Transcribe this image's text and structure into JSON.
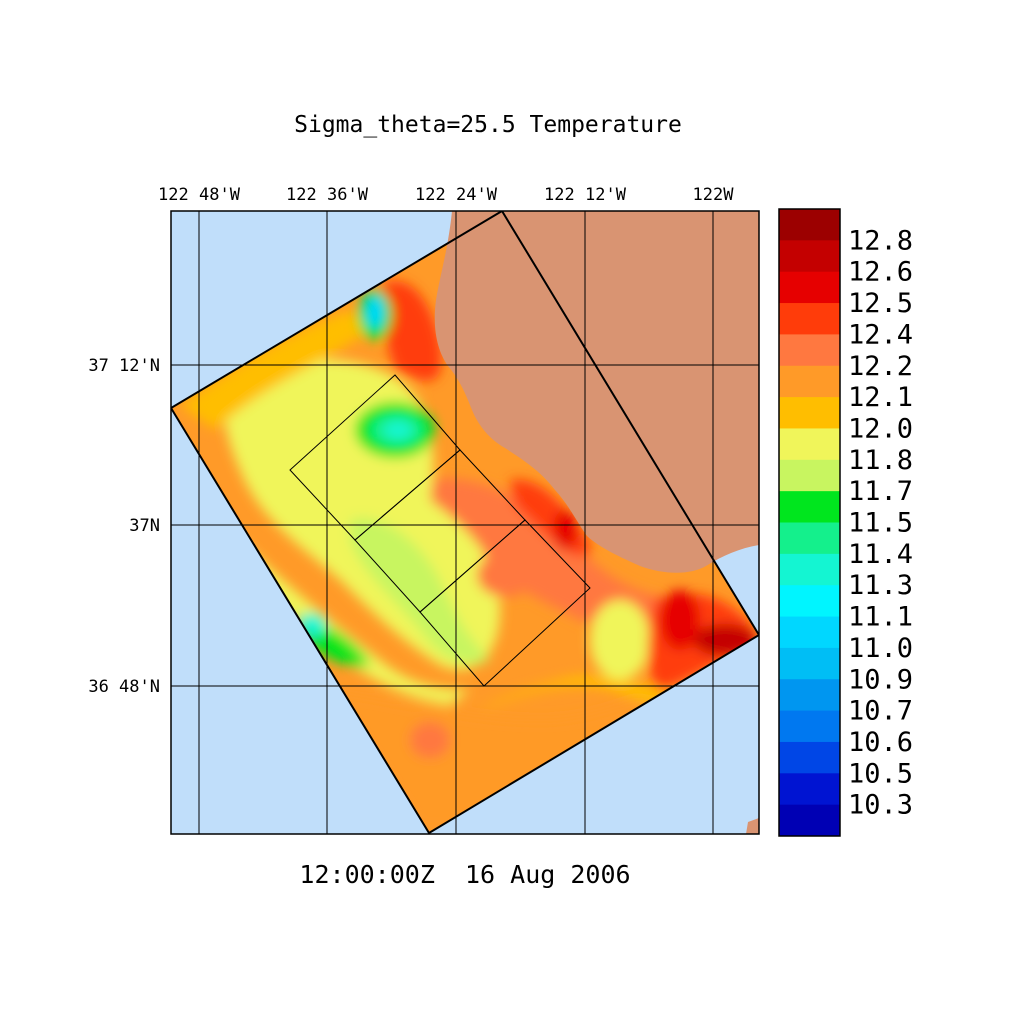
{
  "title": "Sigma_theta=25.5 Temperature",
  "timestamp": "12:00:00Z  16 Aug 2006",
  "longitude_labels": [
    "122 48'W",
    "122 36'W",
    "122 24'W",
    "122 12'W",
    "122W"
  ],
  "latitude_labels": [
    "37 12'N",
    "37N",
    "36 48'N"
  ],
  "colorbar": {
    "labels": [
      "12.8",
      "12.6",
      "12.5",
      "12.4",
      "12.2",
      "12.1",
      "12.0",
      "11.8",
      "11.7",
      "11.5",
      "11.4",
      "11.3",
      "11.1",
      "11.0",
      "10.9",
      "10.7",
      "10.6",
      "10.5",
      "10.3"
    ],
    "colors": [
      "#9c0000",
      "#c40000",
      "#e60000",
      "#ff3c0a",
      "#ff7840",
      "#ff9a28",
      "#ffbe00",
      "#f0f55a",
      "#c8f560",
      "#00e61e",
      "#14f08c",
      "#14f5d2",
      "#00f5ff",
      "#00d7ff",
      "#00bef5",
      "#0096f0",
      "#0078f0",
      "#0046e6",
      "#0014d2",
      "#0000b4"
    ]
  },
  "colors": {
    "ocean": "#c0defa",
    "land": "#d99472",
    "ocean_edge": "#a5d2f5"
  }
}
